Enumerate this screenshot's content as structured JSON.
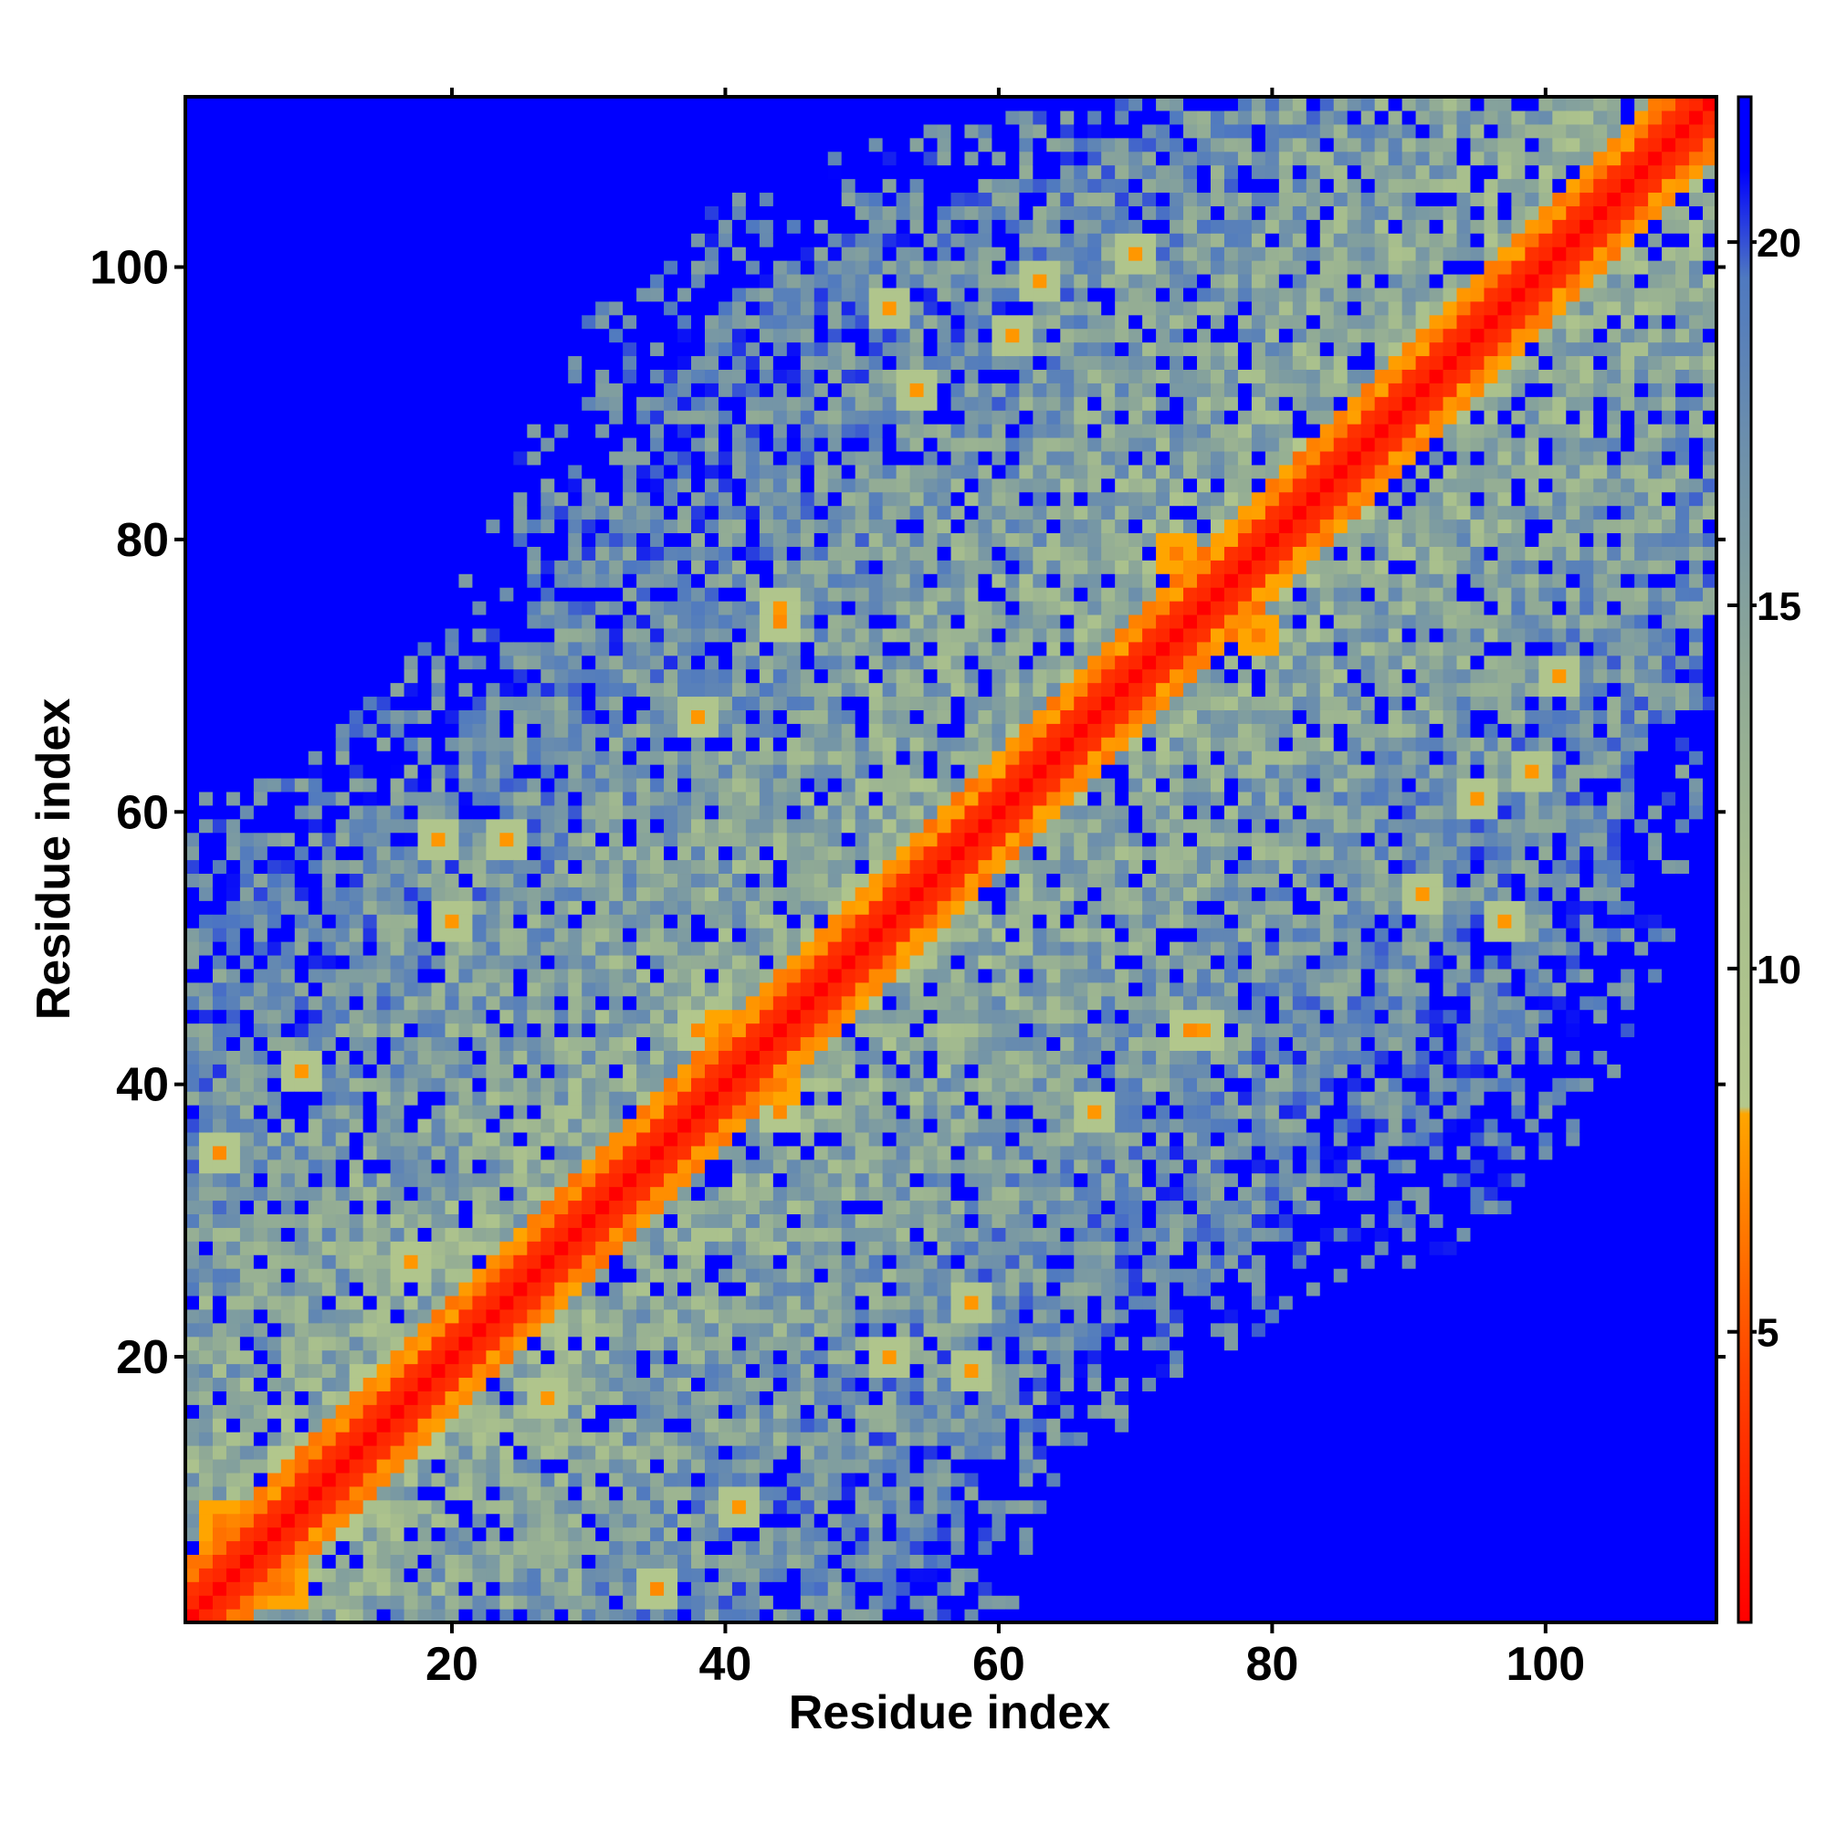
{
  "chart_data": {
    "type": "heatmap",
    "title": "",
    "xlabel": "Residue index",
    "ylabel": "Residue index",
    "n_residues": 112,
    "xlim": [
      0.5,
      112.5
    ],
    "ylim": [
      0.5,
      112.5
    ],
    "x_ticks": [
      20,
      40,
      60,
      80,
      100
    ],
    "y_ticks": [
      20,
      40,
      60,
      80,
      100
    ],
    "colorbar": {
      "min": 1.0,
      "max": 22.0,
      "ticks": [
        5,
        10,
        15,
        20
      ],
      "stops": [
        {
          "value": 1.0,
          "color": "#ff0000"
        },
        {
          "value": 4.5,
          "color": "#ff4500"
        },
        {
          "value": 8.0,
          "color": "#ffa500"
        },
        {
          "value": 8.1,
          "color": "#b4c88c"
        },
        {
          "value": 11.0,
          "color": "#a8bf8d"
        },
        {
          "value": 14.0,
          "color": "#8fa996"
        },
        {
          "value": 17.0,
          "color": "#6f91aa"
        },
        {
          "value": 19.5,
          "color": "#4f79c0"
        },
        {
          "value": 21.0,
          "color": "#0000ff"
        },
        {
          "value": 22.0,
          "color": "#0000ff"
        }
      ]
    },
    "matrix_description": "Symmetric residue-residue distance map (values capped near 21): contact diagonal ~1-3 (red), near-diagonal ~6-8 (orange), mid-range ~10-19 (green-gray/steel), far region 21 (blue).",
    "contact_hotspots": [
      {
        "i": 8,
        "j": 3,
        "value": 6.5
      },
      {
        "i": 12,
        "j": 8,
        "value": 7.0
      },
      {
        "i": 18,
        "j": 14,
        "value": 7.0
      },
      {
        "i": 27,
        "j": 17,
        "value": 7.5
      },
      {
        "i": 35,
        "j": 3,
        "value": 7.0
      },
      {
        "i": 41,
        "j": 9,
        "value": 7.5
      },
      {
        "i": 44,
        "j": 40,
        "value": 6.5
      },
      {
        "i": 38,
        "j": 44,
        "value": 7.0
      },
      {
        "i": 58,
        "j": 19,
        "value": 7.5
      },
      {
        "i": 74,
        "j": 44,
        "value": 7.0
      },
      {
        "i": 79,
        "j": 73,
        "value": 6.5
      },
      {
        "i": 73,
        "j": 79,
        "value": 6.5
      },
      {
        "i": 83,
        "j": 86,
        "value": 7.0
      },
      {
        "i": 44,
        "j": 75,
        "value": 7.5
      },
      {
        "i": 38,
        "j": 67,
        "value": 7.5
      },
      {
        "i": 54,
        "j": 91,
        "value": 7.5
      },
      {
        "i": 70,
        "j": 101,
        "value": 7.5
      },
      {
        "i": 61,
        "j": 95,
        "value": 7.5
      },
      {
        "i": 3,
        "j": 35,
        "value": 7.0
      },
      {
        "i": 17,
        "j": 27,
        "value": 7.5
      },
      {
        "i": 20,
        "j": 52,
        "value": 7.5
      },
      {
        "i": 24,
        "j": 58,
        "value": 7.5
      },
      {
        "i": 97,
        "j": 52,
        "value": 7.5
      },
      {
        "i": 99,
        "j": 63,
        "value": 7.5
      }
    ]
  }
}
